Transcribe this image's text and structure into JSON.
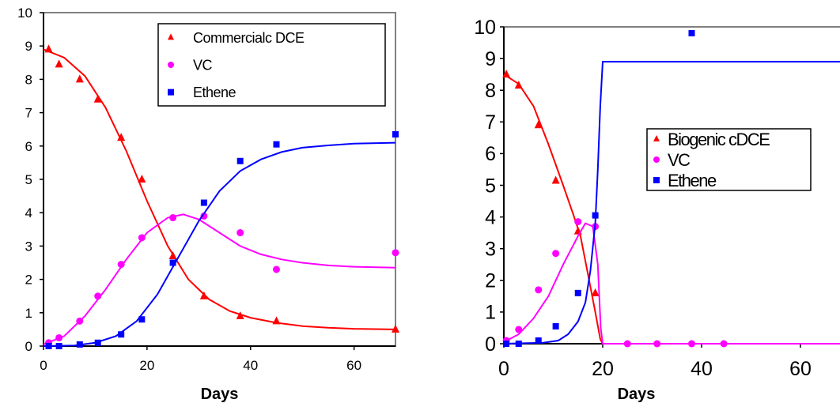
{
  "chart_data": [
    {
      "type": "scatter",
      "xlabel": "Days",
      "ylabel": "",
      "xlim": [
        0,
        68
      ],
      "ylim": [
        0,
        10
      ],
      "x_ticks": [
        "0",
        "20",
        "40",
        "60"
      ],
      "y_ticks": [
        "0",
        "1",
        "2",
        "3",
        "4",
        "5",
        "6",
        "7",
        "8",
        "9",
        "10"
      ],
      "legend_position": "top-right",
      "series": [
        {
          "name": "Commercialc DCE",
          "color": "#ff0000",
          "marker": "triangle",
          "points": [
            [
              1,
              8.9
            ],
            [
              3,
              8.45
            ],
            [
              7,
              8.0
            ],
            [
              10.5,
              7.4
            ],
            [
              15,
              6.25
            ],
            [
              19,
              5.0
            ],
            [
              25,
              2.7
            ],
            [
              31,
              1.5
            ],
            [
              38,
              0.9
            ],
            [
              45,
              0.75
            ],
            [
              68,
              0.5
            ]
          ],
          "fit": [
            [
              0,
              8.9
            ],
            [
              4,
              8.65
            ],
            [
              8,
              8.1
            ],
            [
              12,
              7.15
            ],
            [
              16,
              5.85
            ],
            [
              20,
              4.35
            ],
            [
              24,
              3.0
            ],
            [
              28,
              2.0
            ],
            [
              32,
              1.4
            ],
            [
              36,
              1.05
            ],
            [
              40,
              0.85
            ],
            [
              45,
              0.7
            ],
            [
              50,
              0.6
            ],
            [
              55,
              0.55
            ],
            [
              60,
              0.52
            ],
            [
              68,
              0.5
            ]
          ]
        },
        {
          "name": "VC",
          "color": "#ff00ff",
          "marker": "circle",
          "points": [
            [
              1,
              0.1
            ],
            [
              3,
              0.25
            ],
            [
              7,
              0.75
            ],
            [
              10.5,
              1.5
            ],
            [
              15,
              2.45
            ],
            [
              19,
              3.25
            ],
            [
              25,
              3.85
            ],
            [
              31,
              3.9
            ],
            [
              38,
              3.4
            ],
            [
              45,
              2.3
            ],
            [
              68,
              2.8
            ]
          ],
          "fit": [
            [
              0,
              0.05
            ],
            [
              4,
              0.3
            ],
            [
              8,
              0.9
            ],
            [
              12,
              1.7
            ],
            [
              16,
              2.6
            ],
            [
              20,
              3.4
            ],
            [
              24,
              3.85
            ],
            [
              27,
              3.95
            ],
            [
              30,
              3.8
            ],
            [
              34,
              3.4
            ],
            [
              38,
              3.0
            ],
            [
              42,
              2.75
            ],
            [
              46,
              2.6
            ],
            [
              50,
              2.5
            ],
            [
              55,
              2.42
            ],
            [
              60,
              2.38
            ],
            [
              68,
              2.35
            ]
          ]
        },
        {
          "name": "Ethene",
          "color": "#0000ff",
          "marker": "square",
          "points": [
            [
              1,
              0.0
            ],
            [
              3,
              0.0
            ],
            [
              7,
              0.05
            ],
            [
              10.5,
              0.1
            ],
            [
              15,
              0.35
            ],
            [
              19,
              0.8
            ],
            [
              25,
              2.5
            ],
            [
              31,
              4.3
            ],
            [
              38,
              5.55
            ],
            [
              45,
              6.05
            ],
            [
              68,
              6.35
            ]
          ],
          "fit": [
            [
              0,
              0.0
            ],
            [
              6,
              0.02
            ],
            [
              10,
              0.1
            ],
            [
              14,
              0.3
            ],
            [
              18,
              0.75
            ],
            [
              22,
              1.55
            ],
            [
              26,
              2.65
            ],
            [
              30,
              3.75
            ],
            [
              34,
              4.65
            ],
            [
              38,
              5.25
            ],
            [
              42,
              5.6
            ],
            [
              46,
              5.82
            ],
            [
              50,
              5.95
            ],
            [
              55,
              6.02
            ],
            [
              60,
              6.07
            ],
            [
              68,
              6.1
            ]
          ]
        }
      ]
    },
    {
      "type": "scatter",
      "xlabel": "Days",
      "ylabel": "",
      "xlim": [
        0,
        68
      ],
      "ylim": [
        0,
        10
      ],
      "x_ticks": [
        "0",
        "20",
        "40",
        "60"
      ],
      "y_ticks": [
        "0",
        "1",
        "2",
        "3",
        "4",
        "5",
        "6",
        "7",
        "8",
        "9",
        "10"
      ],
      "legend_position": "center-right",
      "series": [
        {
          "name": "Biogenic cDCE",
          "color": "#ff0000",
          "marker": "triangle",
          "points": [
            [
              0.5,
              8.5
            ],
            [
              3,
              8.15
            ],
            [
              7,
              6.9
            ],
            [
              10.5,
              5.15
            ],
            [
              15,
              3.55
            ],
            [
              18.5,
              1.6
            ]
          ],
          "fit": [
            [
              0,
              8.5
            ],
            [
              3,
              8.2
            ],
            [
              6,
              7.5
            ],
            [
              9,
              6.3
            ],
            [
              12,
              5.0
            ],
            [
              14,
              4.1
            ],
            [
              15.5,
              3.4
            ],
            [
              17,
              2.2
            ],
            [
              18.5,
              1.0
            ],
            [
              19.5,
              0.15
            ],
            [
              20,
              0.0
            ],
            [
              68,
              0.0
            ]
          ]
        },
        {
          "name": "VC",
          "color": "#ff00ff",
          "marker": "circle",
          "points": [
            [
              0.5,
              0.1
            ],
            [
              3,
              0.45
            ],
            [
              7,
              1.7
            ],
            [
              10.5,
              2.85
            ],
            [
              15,
              3.85
            ],
            [
              18.5,
              3.7
            ],
            [
              25,
              0.0
            ],
            [
              31,
              0.0
            ],
            [
              38,
              0.0
            ],
            [
              44.5,
              0.0
            ]
          ],
          "fit": [
            [
              0,
              0.05
            ],
            [
              3,
              0.3
            ],
            [
              6,
              0.8
            ],
            [
              9,
              1.5
            ],
            [
              12,
              2.5
            ],
            [
              15,
              3.4
            ],
            [
              16.5,
              3.8
            ],
            [
              18,
              3.7
            ],
            [
              19,
              2.5
            ],
            [
              19.6,
              0.5
            ],
            [
              20,
              0.0
            ],
            [
              68,
              0.0
            ]
          ]
        },
        {
          "name": "Ethene",
          "color": "#0000ff",
          "marker": "square",
          "points": [
            [
              0.5,
              0.0
            ],
            [
              3,
              0.0
            ],
            [
              7,
              0.1
            ],
            [
              10.5,
              0.55
            ],
            [
              15,
              1.6
            ],
            [
              18.5,
              4.05
            ],
            [
              38,
              9.8
            ]
          ],
          "fit": [
            [
              0,
              0.0
            ],
            [
              8,
              0.03
            ],
            [
              11,
              0.1
            ],
            [
              13,
              0.3
            ],
            [
              15,
              0.7
            ],
            [
              16.5,
              1.3
            ],
            [
              17.5,
              2.3
            ],
            [
              18.5,
              3.8
            ],
            [
              19,
              5.5
            ],
            [
              19.5,
              7.5
            ],
            [
              20,
              8.9
            ],
            [
              68,
              8.9
            ]
          ]
        }
      ]
    }
  ]
}
